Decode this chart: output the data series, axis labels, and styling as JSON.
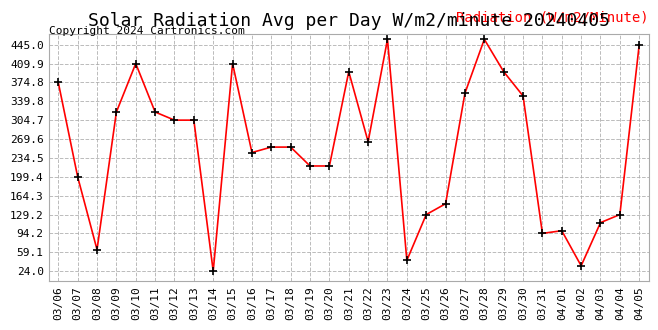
{
  "title": "Solar Radiation Avg per Day W/m2/minute 20240405",
  "copyright": "Copyright 2024 Cartronics.com",
  "legend_label": "Radiation (W/m2/Minute)",
  "dates": [
    "03/06",
    "03/07",
    "03/08",
    "03/09",
    "03/10",
    "03/11",
    "03/12",
    "03/13",
    "03/14",
    "03/15",
    "03/16",
    "03/17",
    "03/18",
    "03/19",
    "03/20",
    "03/21",
    "03/22",
    "03/23",
    "03/24",
    "03/25",
    "03/26",
    "03/27",
    "03/28",
    "03/29",
    "03/30",
    "03/31",
    "04/01",
    "04/02",
    "04/03",
    "04/04",
    "04/05"
  ],
  "values": [
    374.8,
    199.4,
    64.0,
    319.8,
    409.9,
    319.8,
    304.7,
    304.7,
    24.0,
    409.9,
    244.5,
    254.6,
    254.6,
    219.5,
    219.5,
    394.8,
    264.6,
    454.9,
    44.0,
    129.2,
    149.3,
    354.8,
    454.9,
    394.8,
    349.7,
    94.2,
    99.2,
    34.0,
    114.2,
    129.2,
    445.0
  ],
  "line_color": "red",
  "marker": "+",
  "marker_color": "black",
  "background_color": "#ffffff",
  "grid_color": "#aaaaaa",
  "yticks": [
    24.0,
    59.1,
    94.2,
    129.2,
    164.3,
    199.4,
    234.5,
    269.6,
    304.7,
    339.8,
    374.8,
    409.9,
    445.0
  ],
  "ylim": [
    5.0,
    465.0
  ],
  "title_fontsize": 13,
  "copyright_fontsize": 8,
  "legend_fontsize": 10,
  "tick_fontsize": 8,
  "legend_color": "red"
}
